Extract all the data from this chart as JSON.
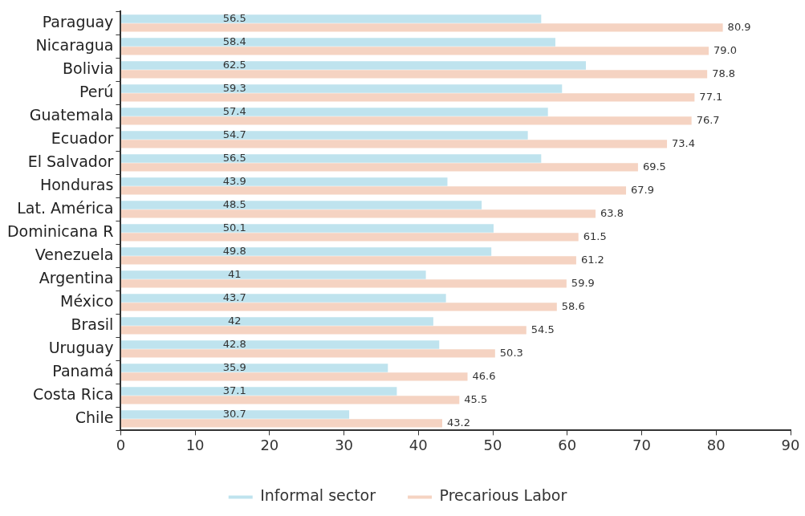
{
  "chart_data": {
    "type": "bar",
    "orientation": "horizontal",
    "categories": [
      "Paraguay",
      "Nicaragua",
      "Bolivia",
      "Perú",
      "Guatemala",
      "Ecuador",
      "El Salvador",
      "Honduras",
      "Lat. América",
      "Dominicana R",
      "Venezuela",
      "Argentina",
      "México",
      "Brasil",
      "Uruguay",
      "Panamá",
      "Costa Rica",
      "Chile"
    ],
    "series": [
      {
        "name": "Informal sector",
        "color": "#bfe3ee",
        "values": [
          56.5,
          58.4,
          62.5,
          59.3,
          57.4,
          54.7,
          56.5,
          43.9,
          48.5,
          50.1,
          49.8,
          41,
          43.7,
          42,
          42.8,
          35.9,
          37.1,
          30.7
        ],
        "value_labels": [
          "56.5",
          "58.4",
          "62.5",
          "59.3",
          "57.4",
          "54.7",
          "56.5",
          "43.9",
          "48.5",
          "50.1",
          "49.8",
          "41",
          "43.7",
          "42",
          "42.8",
          "35.9",
          "37.1",
          "30.7"
        ]
      },
      {
        "name": "Precarious Labor",
        "color": "#f5d3c2",
        "values": [
          80.9,
          79.0,
          78.8,
          77.1,
          76.7,
          73.4,
          69.5,
          67.9,
          63.8,
          61.5,
          61.2,
          59.9,
          58.6,
          54.5,
          50.3,
          46.6,
          45.5,
          43.2
        ],
        "value_labels": [
          "80.9",
          "79.0",
          "78.8",
          "77.1",
          "76.7",
          "73.4",
          "69.5",
          "67.9",
          "63.8",
          "61.5",
          "61.2",
          "59.9",
          "58.6",
          "54.5",
          "50.3",
          "46.6",
          "45.5",
          "43.2"
        ]
      }
    ],
    "xlim": [
      0,
      90
    ],
    "xticks": [
      0,
      10,
      20,
      30,
      40,
      50,
      60,
      70,
      80,
      90
    ],
    "grid": false,
    "legend": "bottom"
  }
}
